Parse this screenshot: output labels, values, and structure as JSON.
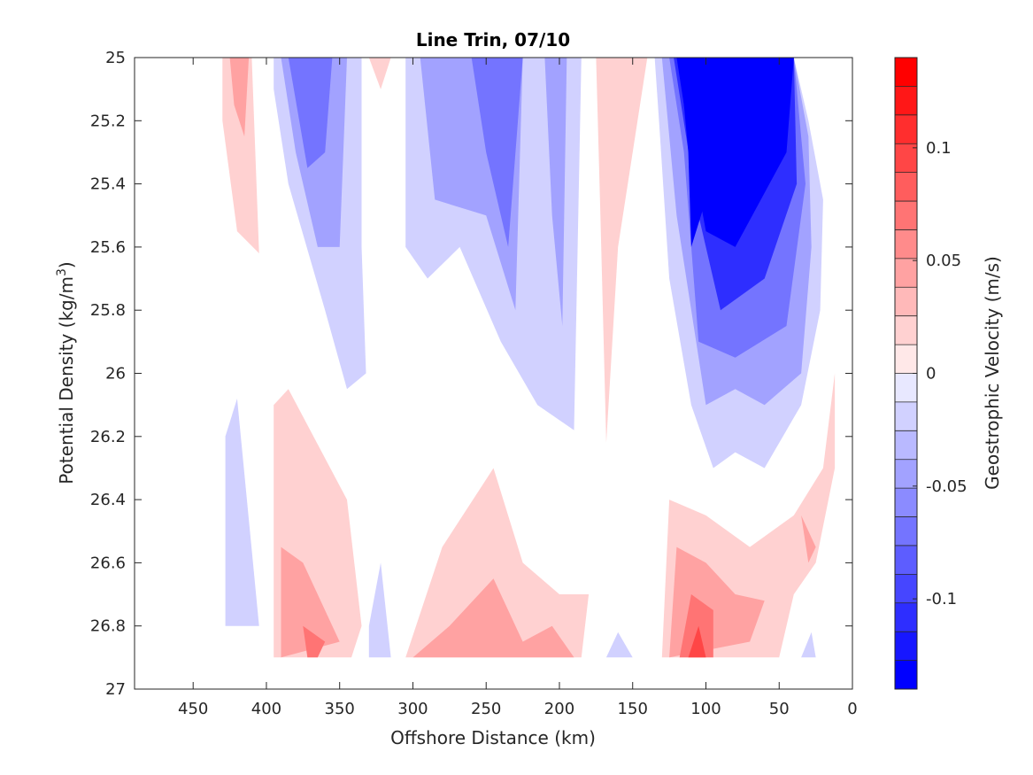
{
  "chart_data": {
    "type": "contour",
    "title": "Line Trin, 07/10",
    "xlabel": "Offshore Distance (km)",
    "ylabel_main": "Potential Density (kg/m",
    "ylabel_sup": "3",
    "ylabel_close": ")",
    "xlim": [
      490,
      0
    ],
    "ylim": [
      25,
      27
    ],
    "x_reversed": true,
    "y_reversed": true,
    "x_ticks": [
      450,
      400,
      350,
      300,
      250,
      200,
      150,
      100,
      50,
      0
    ],
    "y_ticks": [
      25,
      25.2,
      25.4,
      25.6,
      25.8,
      26,
      26.2,
      26.4,
      26.6,
      26.8,
      27
    ],
    "y_tick_labels": [
      "25",
      "25.2",
      "25.4",
      "25.6",
      "25.8",
      "26",
      "26.2",
      "26.4",
      "26.6",
      "26.8",
      "27"
    ],
    "colorbar": {
      "label": "Geostrophic Velocity (m/s)",
      "range": [
        -0.14,
        0.14
      ],
      "levels": 22,
      "ticks": [
        -0.1,
        -0.05,
        0,
        0.05,
        0.1
      ],
      "tick_labels": [
        "-0.1",
        "-0.05",
        "0",
        "0.05",
        "0.1"
      ],
      "color_min": "#0000ff",
      "color_zero": "#ffffff",
      "color_max": "#ff0000"
    },
    "regions": [
      {
        "name": "red-surface-420",
        "level": 2,
        "points": [
          [
            430,
            25
          ],
          [
            410,
            25
          ],
          [
            405,
            25.62
          ],
          [
            420,
            25.55
          ],
          [
            430,
            25.2
          ]
        ]
      },
      {
        "name": "red-surface-420-core",
        "level": 4,
        "points": [
          [
            425,
            25
          ],
          [
            412,
            25
          ],
          [
            415,
            25.25
          ],
          [
            422,
            25.15
          ]
        ]
      },
      {
        "name": "blue-surface-360",
        "level": -2,
        "points": [
          [
            395,
            25
          ],
          [
            335,
            25
          ],
          [
            335,
            25.6
          ],
          [
            332,
            26.0
          ],
          [
            345,
            26.05
          ],
          [
            360,
            25.8
          ],
          [
            385,
            25.4
          ],
          [
            395,
            25.1
          ]
        ]
      },
      {
        "name": "blue-surface-360-mid",
        "level": -4,
        "points": [
          [
            390,
            25
          ],
          [
            345,
            25
          ],
          [
            350,
            25.6
          ],
          [
            365,
            25.6
          ],
          [
            380,
            25.3
          ]
        ]
      },
      {
        "name": "blue-surface-360-core",
        "level": -6,
        "points": [
          [
            385,
            25
          ],
          [
            355,
            25
          ],
          [
            360,
            25.3
          ],
          [
            372,
            25.35
          ]
        ]
      },
      {
        "name": "red-surface-325",
        "level": 2,
        "points": [
          [
            330,
            25
          ],
          [
            315,
            25
          ],
          [
            322,
            25.1
          ]
        ]
      },
      {
        "name": "blue-surface-250",
        "level": -2,
        "points": [
          [
            305,
            25
          ],
          [
            220,
            25
          ],
          [
            200,
            25
          ],
          [
            185,
            25
          ],
          [
            190,
            26.18
          ],
          [
            215,
            26.1
          ],
          [
            240,
            25.9
          ],
          [
            268,
            25.6
          ],
          [
            290,
            25.7
          ],
          [
            305,
            25.6
          ]
        ]
      },
      {
        "name": "blue-surface-250-mid",
        "level": -4,
        "points": [
          [
            295,
            25
          ],
          [
            225,
            25
          ],
          [
            230,
            25.8
          ],
          [
            250,
            25.5
          ],
          [
            285,
            25.45
          ]
        ]
      },
      {
        "name": "blue-surface-250-core",
        "level": -6,
        "points": [
          [
            260,
            25
          ],
          [
            225,
            25
          ],
          [
            235,
            25.6
          ],
          [
            250,
            25.3
          ]
        ]
      },
      {
        "name": "blue-surface-205",
        "level": -4,
        "points": [
          [
            210,
            25
          ],
          [
            195,
            25
          ],
          [
            198,
            25.85
          ],
          [
            205,
            25.5
          ]
        ]
      },
      {
        "name": "red-surface-160",
        "level": 2,
        "points": [
          [
            175,
            25
          ],
          [
            140,
            25
          ],
          [
            160,
            25.6
          ],
          [
            168,
            26.22
          ],
          [
            172,
            25.5
          ]
        ]
      },
      {
        "name": "blue-surface-90",
        "level": -2,
        "points": [
          [
            135,
            25
          ],
          [
            40,
            25
          ],
          [
            30,
            25.2
          ],
          [
            20,
            25.45
          ],
          [
            22,
            25.8
          ],
          [
            35,
            26.1
          ],
          [
            60,
            26.3
          ],
          [
            80,
            26.25
          ],
          [
            95,
            26.3
          ],
          [
            110,
            26.1
          ],
          [
            125,
            25.7
          ],
          [
            132,
            25.2
          ]
        ]
      },
      {
        "name": "blue-surface-90-l4",
        "level": -4,
        "points": [
          [
            130,
            25
          ],
          [
            40,
            25
          ],
          [
            30,
            25.25
          ],
          [
            28,
            25.6
          ],
          [
            35,
            26.0
          ],
          [
            60,
            26.1
          ],
          [
            80,
            26.05
          ],
          [
            100,
            26.1
          ],
          [
            120,
            25.5
          ]
        ]
      },
      {
        "name": "blue-surface-90-l6",
        "level": -6,
        "points": [
          [
            125,
            25
          ],
          [
            40,
            25
          ],
          [
            32,
            25.4
          ],
          [
            45,
            25.85
          ],
          [
            80,
            25.95
          ],
          [
            105,
            25.9
          ],
          [
            115,
            25.3
          ]
        ]
      },
      {
        "name": "blue-surface-90-l9",
        "level": -9,
        "points": [
          [
            122,
            25
          ],
          [
            40,
            25
          ],
          [
            38,
            25.4
          ],
          [
            60,
            25.7
          ],
          [
            90,
            25.8
          ],
          [
            105,
            25.5
          ]
        ]
      },
      {
        "name": "blue-surface-90-l12",
        "level": -12,
        "points": [
          [
            120,
            25
          ],
          [
            40,
            25
          ],
          [
            45,
            25.3
          ],
          [
            80,
            25.6
          ],
          [
            100,
            25.55
          ],
          [
            110,
            25.3
          ]
        ]
      },
      {
        "name": "blue-surface-90-l16",
        "level": -16,
        "points": [
          [
            118,
            25
          ],
          [
            85,
            25
          ],
          [
            90,
            25.3
          ],
          [
            110,
            25.6
          ],
          [
            112,
            25.3
          ]
        ]
      },
      {
        "name": "blue-surface-90-l20",
        "level": -20,
        "points": [
          [
            115,
            25
          ],
          [
            95,
            25
          ],
          [
            100,
            25.15
          ],
          [
            110,
            25.35
          ]
        ]
      },
      {
        "name": "blue-deep-440",
        "level": -2,
        "points": [
          [
            428,
            26.2
          ],
          [
            420,
            26.08
          ],
          [
            405,
            26.8
          ],
          [
            428,
            26.8
          ]
        ]
      },
      {
        "name": "red-deep-370",
        "level": 2,
        "points": [
          [
            395,
            26.1
          ],
          [
            385,
            26.05
          ],
          [
            345,
            26.4
          ],
          [
            335,
            26.8
          ],
          [
            342,
            26.9
          ],
          [
            395,
            26.9
          ]
        ]
      },
      {
        "name": "red-deep-370-l4",
        "level": 4,
        "points": [
          [
            390,
            26.55
          ],
          [
            375,
            26.6
          ],
          [
            350,
            26.85
          ],
          [
            390,
            26.9
          ]
        ]
      },
      {
        "name": "red-deep-370-l6",
        "level": 6,
        "points": [
          [
            375,
            26.8
          ],
          [
            360,
            26.85
          ],
          [
            365,
            26.9
          ],
          [
            372,
            26.9
          ]
        ]
      },
      {
        "name": "blue-deep-325",
        "level": -2,
        "points": [
          [
            330,
            26.8
          ],
          [
            322,
            26.6
          ],
          [
            315,
            26.9
          ],
          [
            330,
            26.9
          ]
        ]
      },
      {
        "name": "red-deep-250",
        "level": 2,
        "points": [
          [
            305,
            26.9
          ],
          [
            280,
            26.55
          ],
          [
            245,
            26.3
          ],
          [
            225,
            26.6
          ],
          [
            200,
            26.7
          ],
          [
            180,
            26.7
          ],
          [
            185,
            26.9
          ]
        ]
      },
      {
        "name": "red-deep-250-l4",
        "level": 4,
        "points": [
          [
            300,
            26.9
          ],
          [
            275,
            26.8
          ],
          [
            245,
            26.65
          ],
          [
            225,
            26.85
          ],
          [
            205,
            26.8
          ],
          [
            190,
            26.9
          ]
        ]
      },
      {
        "name": "blue-deep-165",
        "level": -2,
        "points": [
          [
            168,
            26.9
          ],
          [
            160,
            26.82
          ],
          [
            150,
            26.9
          ]
        ]
      },
      {
        "name": "red-deep-90",
        "level": 2,
        "points": [
          [
            130,
            26.9
          ],
          [
            125,
            26.4
          ],
          [
            100,
            26.45
          ],
          [
            70,
            26.55
          ],
          [
            40,
            26.45
          ],
          [
            20,
            26.3
          ],
          [
            12,
            26.0
          ],
          [
            12,
            26.3
          ],
          [
            25,
            26.6
          ],
          [
            40,
            26.7
          ],
          [
            50,
            26.9
          ]
        ]
      },
      {
        "name": "red-deep-90-l4",
        "level": 4,
        "points": [
          [
            125,
            26.9
          ],
          [
            120,
            26.55
          ],
          [
            100,
            26.6
          ],
          [
            80,
            26.7
          ],
          [
            60,
            26.72
          ],
          [
            70,
            26.85
          ],
          [
            125,
            26.9
          ]
        ]
      },
      {
        "name": "red-deep-90-l6",
        "level": 6,
        "points": [
          [
            118,
            26.9
          ],
          [
            110,
            26.7
          ],
          [
            95,
            26.75
          ],
          [
            95,
            26.9
          ]
        ]
      },
      {
        "name": "red-deep-90-l8",
        "level": 8,
        "points": [
          [
            112,
            26.9
          ],
          [
            105,
            26.8
          ],
          [
            100,
            26.9
          ]
        ]
      },
      {
        "name": "red-deep-30",
        "level": 4,
        "points": [
          [
            35,
            26.45
          ],
          [
            25,
            26.55
          ],
          [
            30,
            26.6
          ]
        ]
      },
      {
        "name": "blue-deep-30",
        "level": -2,
        "points": [
          [
            35,
            26.9
          ],
          [
            28,
            26.82
          ],
          [
            25,
            26.9
          ]
        ]
      }
    ]
  }
}
